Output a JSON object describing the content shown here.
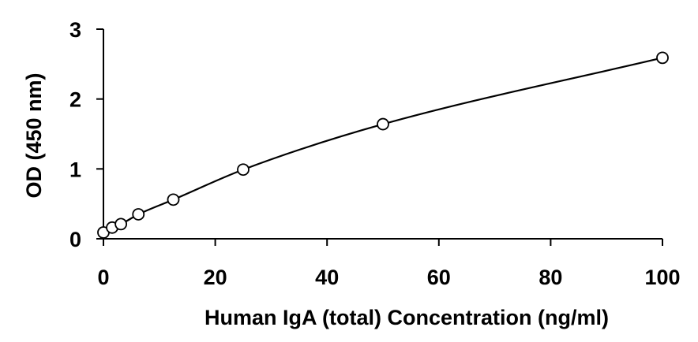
{
  "chart_data": {
    "type": "scatter",
    "title": "",
    "xlabel": "Human IgA (total) Concentration (ng/ml)",
    "ylabel": "OD (450 nm)",
    "xlim": [
      0,
      100
    ],
    "ylim": [
      0,
      3
    ],
    "xticks": [
      0,
      20,
      40,
      60,
      80,
      100
    ],
    "yticks": [
      0,
      1,
      2,
      3
    ],
    "grid": false,
    "legend": "none",
    "marker": "open-circle",
    "fit_line": true,
    "colors": {
      "line": "#000000",
      "marker_fill": "#ffffff",
      "marker_edge": "#000000"
    },
    "series": [
      {
        "x": [
          0,
          1.56,
          3.125,
          6.25,
          12.5,
          25,
          50,
          100
        ],
        "y": [
          0.09,
          0.16,
          0.21,
          0.35,
          0.56,
          0.99,
          1.64,
          2.59
        ]
      }
    ]
  }
}
